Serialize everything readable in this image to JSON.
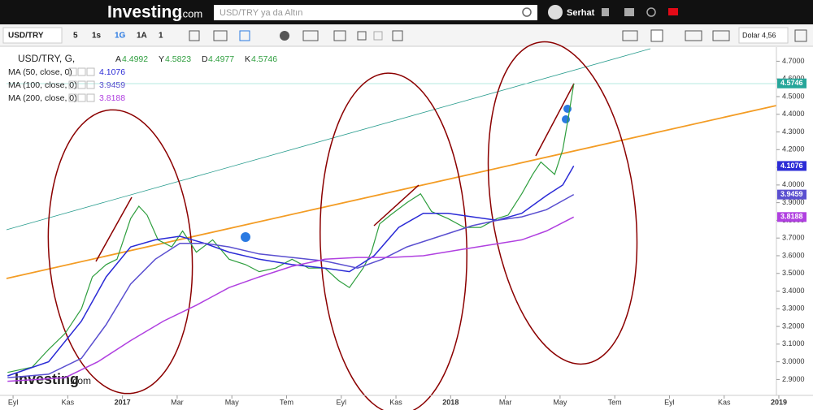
{
  "header": {
    "logo": "Investing",
    "logo_suffix": ".com",
    "search_placeholder": "USD/TRY ya da Altın",
    "user": "Serhat"
  },
  "toolbar": {
    "symbol": "USD/TRY",
    "intervals": [
      "5",
      "1s",
      "1G",
      "1A",
      "1"
    ],
    "currency": "Dolar 4,56"
  },
  "chart_data": {
    "type": "line",
    "title": "USD/TRY, G,",
    "ohlc": [
      {
        "label": "A",
        "value": "4.4992"
      },
      {
        "label": "Y",
        "value": "4.5823"
      },
      {
        "label": "D",
        "value": "4.4977"
      },
      {
        "label": "K",
        "value": "4.5746"
      }
    ],
    "xlim": [
      -0.24,
      28.0
    ],
    "xticks": [
      {
        "value": 0,
        "label": "Eyl"
      },
      {
        "value": 2,
        "label": "Kas"
      },
      {
        "value": 4,
        "label": "2017"
      },
      {
        "value": 6,
        "label": "Mar"
      },
      {
        "value": 8,
        "label": "May"
      },
      {
        "value": 10,
        "label": "Tem"
      },
      {
        "value": 12,
        "label": "Eyl"
      },
      {
        "value": 14,
        "label": "Kas"
      },
      {
        "value": 16,
        "label": "2018"
      },
      {
        "value": 18,
        "label": "Mar"
      },
      {
        "value": 20,
        "label": "May"
      },
      {
        "value": 22,
        "label": "Tem"
      },
      {
        "value": 24,
        "label": "Eyl"
      },
      {
        "value": 26,
        "label": "Kas"
      },
      {
        "value": 28,
        "label": "2019"
      }
    ],
    "ylim": [
      2.81,
      4.78
    ],
    "yticks": [
      {
        "value": 2.9,
        "label": "2.9000"
      },
      {
        "value": 3.0,
        "label": "3.0000"
      },
      {
        "value": 3.1,
        "label": "3.1000"
      },
      {
        "value": 3.2,
        "label": "3.2000"
      },
      {
        "value": 3.3,
        "label": "3.3000"
      },
      {
        "value": 3.4,
        "label": "3.4000"
      },
      {
        "value": 3.5,
        "label": "3.5000"
      },
      {
        "value": 3.6,
        "label": "3.6000"
      },
      {
        "value": 3.7,
        "label": "3.7000"
      },
      {
        "value": 3.8,
        "label": "3.8000"
      },
      {
        "value": 3.9,
        "label": "3.9000"
      },
      {
        "value": 4.0,
        "label": "4.0000"
      },
      {
        "value": 4.1,
        "label": "4.1000"
      },
      {
        "value": 4.2,
        "label": "4.2000"
      },
      {
        "value": 4.3,
        "label": "4.3000"
      },
      {
        "value": 4.4,
        "label": "4.4000"
      },
      {
        "value": 4.5,
        "label": "4.5000"
      },
      {
        "value": 4.6,
        "label": "4.6000"
      },
      {
        "value": 4.7,
        "label": "4.7000"
      }
    ],
    "last_price": {
      "label": "4.5746",
      "value": 4.5746,
      "color": "#26a69a"
    },
    "series": [
      {
        "name": "USD/TRY",
        "color": "#2e9e3e",
        "x": [
          -0.2,
          0.7,
          1.3,
          1.9,
          2.5,
          2.9,
          3.4,
          3.8,
          4.3,
          4.6,
          4.9,
          5.3,
          5.8,
          6.2,
          6.7,
          7.3,
          7.9,
          8.5,
          9.0,
          9.6,
          10.2,
          10.8,
          11.4,
          11.9,
          12.3,
          12.8,
          13.1,
          13.4,
          13.8,
          14.4,
          14.9,
          15.3,
          15.9,
          16.5,
          17.1,
          17.7,
          18.1,
          18.6,
          19.0,
          19.3,
          19.8,
          20.1,
          20.3,
          20.5
        ],
        "values": [
          2.94,
          2.97,
          3.07,
          3.16,
          3.3,
          3.48,
          3.55,
          3.58,
          3.81,
          3.88,
          3.83,
          3.69,
          3.65,
          3.74,
          3.62,
          3.69,
          3.58,
          3.55,
          3.51,
          3.53,
          3.58,
          3.53,
          3.53,
          3.46,
          3.42,
          3.53,
          3.62,
          3.78,
          3.83,
          3.9,
          3.95,
          3.85,
          3.81,
          3.76,
          3.76,
          3.81,
          3.83,
          3.95,
          4.06,
          4.13,
          4.06,
          4.2,
          4.38,
          4.57
        ]
      },
      {
        "name": "MA (50, close, 0)",
        "last": "4.1076",
        "color": "#2b2bd6",
        "x": [
          -0.2,
          1.3,
          2.5,
          3.4,
          4.3,
          5.2,
          6.1,
          7.0,
          7.9,
          9.0,
          10.2,
          11.4,
          12.3,
          13.2,
          14.1,
          15.0,
          15.9,
          16.8,
          17.7,
          18.6,
          19.5,
          20.1,
          20.5
        ],
        "values": [
          2.92,
          3.0,
          3.23,
          3.48,
          3.65,
          3.69,
          3.71,
          3.67,
          3.62,
          3.58,
          3.55,
          3.53,
          3.51,
          3.6,
          3.76,
          3.84,
          3.84,
          3.82,
          3.8,
          3.84,
          3.94,
          4.0,
          4.1076
        ]
      },
      {
        "name": "MA (100, close, 0)",
        "last": "3.9459",
        "color": "#5a4fd0",
        "x": [
          -0.2,
          1.3,
          2.5,
          3.4,
          4.3,
          5.2,
          6.1,
          7.0,
          7.9,
          9.0,
          10.2,
          11.4,
          12.6,
          13.5,
          14.4,
          15.6,
          16.8,
          17.7,
          18.6,
          19.5,
          20.5
        ],
        "values": [
          2.91,
          2.93,
          3.02,
          3.21,
          3.44,
          3.58,
          3.67,
          3.67,
          3.65,
          3.61,
          3.59,
          3.57,
          3.53,
          3.58,
          3.65,
          3.71,
          3.77,
          3.8,
          3.82,
          3.86,
          3.9459
        ]
      },
      {
        "name": "MA (200, close, 0)",
        "last": "3.8188",
        "color": "#b040e0",
        "x": [
          -0.2,
          1.9,
          3.1,
          4.3,
          5.5,
          6.7,
          7.9,
          9.0,
          10.2,
          11.4,
          12.6,
          13.8,
          15.0,
          16.2,
          17.4,
          18.6,
          19.5,
          20.5
        ],
        "values": [
          2.89,
          2.91,
          3.0,
          3.12,
          3.23,
          3.32,
          3.42,
          3.48,
          3.54,
          3.58,
          3.59,
          3.59,
          3.6,
          3.63,
          3.66,
          3.69,
          3.74,
          3.8188
        ]
      }
    ]
  }
}
